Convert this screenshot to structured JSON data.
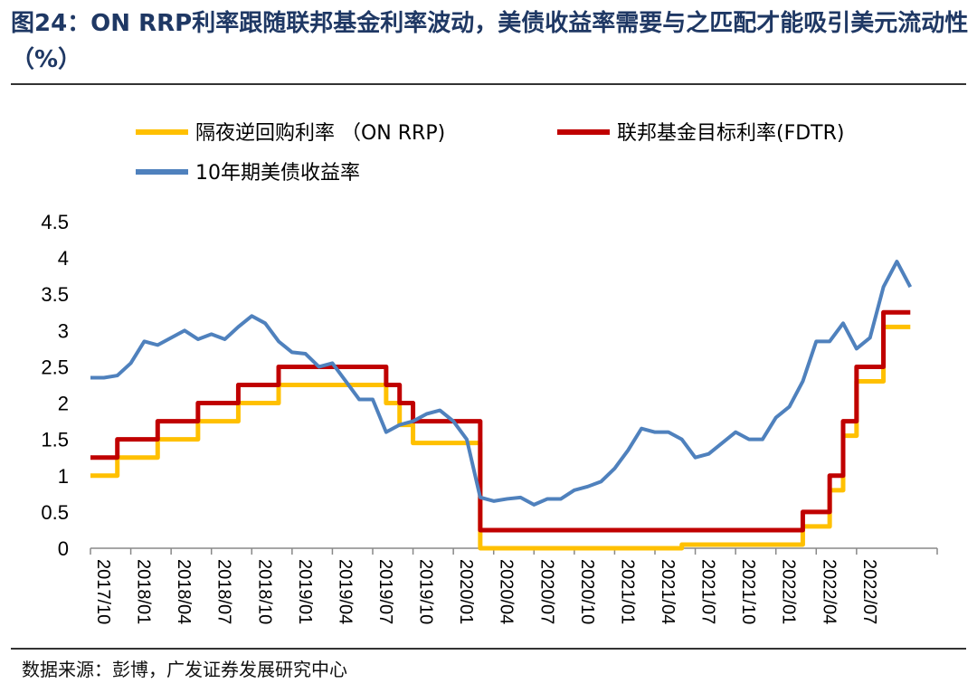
{
  "figure": {
    "title": "图24：ON RRP利率跟随联邦基金利率波动，美债收益率需要与之匹配才能吸引美元流动性（%）",
    "source": "数据来源：彭博，广发证券发展研究中心"
  },
  "chart_data": {
    "type": "line",
    "title": "ON RRP利率跟随联邦基金利率波动，美债收益率需要与之匹配才能吸引美元流动性（%）",
    "xlabel": "",
    "ylabel": "%",
    "ylim": [
      0,
      4.5
    ],
    "yticks": [
      "0",
      "0.5",
      "1",
      "1.5",
      "2",
      "2.5",
      "3",
      "3.5",
      "4",
      "4.5"
    ],
    "xlim": [
      "2017/10",
      "2023/01"
    ],
    "xticks": [
      "2017/10",
      "2018/01",
      "2018/04",
      "2018/07",
      "2018/10",
      "2019/01",
      "2019/04",
      "2019/07",
      "2019/10",
      "2020/01",
      "2020/04",
      "2020/07",
      "2020/10",
      "2021/01",
      "2021/04",
      "2021/07",
      "2021/10",
      "2022/01",
      "2022/04",
      "2022/07"
    ],
    "legend": {
      "placement": "top",
      "items": [
        "隔夜逆回购利率 （ON RRP)",
        "联邦基金目标利率(FDTR)",
        "10年期美债收益率"
      ]
    },
    "series": [
      {
        "name": "隔夜逆回购利率 （ON RRP)",
        "color": "#ffc000",
        "step": true,
        "points": [
          [
            "2017/10",
            1.0
          ],
          [
            "2017/12",
            1.25
          ],
          [
            "2018/03",
            1.5
          ],
          [
            "2018/06",
            1.75
          ],
          [
            "2018/09",
            2.0
          ],
          [
            "2018/12",
            2.25
          ],
          [
            "2019/08",
            2.0
          ],
          [
            "2019/09",
            1.7
          ],
          [
            "2019/10",
            1.45
          ],
          [
            "2020/03",
            0.0
          ],
          [
            "2021/06",
            0.05
          ],
          [
            "2022/03",
            0.3
          ],
          [
            "2022/05",
            0.8
          ],
          [
            "2022/06",
            1.55
          ],
          [
            "2022/07",
            2.3
          ],
          [
            "2022/09",
            3.05
          ],
          [
            "2022/11",
            3.05
          ]
        ]
      },
      {
        "name": "联邦基金目标利率(FDTR)",
        "color": "#c00000",
        "step": true,
        "points": [
          [
            "2017/10",
            1.25
          ],
          [
            "2017/12",
            1.5
          ],
          [
            "2018/03",
            1.75
          ],
          [
            "2018/06",
            2.0
          ],
          [
            "2018/09",
            2.25
          ],
          [
            "2018/12",
            2.5
          ],
          [
            "2019/08",
            2.25
          ],
          [
            "2019/09",
            2.0
          ],
          [
            "2019/10",
            1.75
          ],
          [
            "2020/03",
            1.25
          ],
          [
            "2020/03",
            0.25
          ],
          [
            "2022/03",
            0.5
          ],
          [
            "2022/05",
            1.0
          ],
          [
            "2022/06",
            1.75
          ],
          [
            "2022/07",
            2.5
          ],
          [
            "2022/09",
            3.25
          ],
          [
            "2022/11",
            3.25
          ]
        ]
      },
      {
        "name": "10年期美债收益率",
        "color": "#4f81bd",
        "step": false,
        "points": [
          [
            "2017/10",
            2.35
          ],
          [
            "2017/11",
            2.35
          ],
          [
            "2017/12",
            2.38
          ],
          [
            "2018/01",
            2.55
          ],
          [
            "2018/02",
            2.85
          ],
          [
            "2018/03",
            2.8
          ],
          [
            "2018/04",
            2.9
          ],
          [
            "2018/05",
            3.0
          ],
          [
            "2018/06",
            2.88
          ],
          [
            "2018/07",
            2.95
          ],
          [
            "2018/08",
            2.88
          ],
          [
            "2018/09",
            3.05
          ],
          [
            "2018/10",
            3.2
          ],
          [
            "2018/11",
            3.1
          ],
          [
            "2018/12",
            2.85
          ],
          [
            "2019/01",
            2.7
          ],
          [
            "2019/02",
            2.68
          ],
          [
            "2019/03",
            2.5
          ],
          [
            "2019/04",
            2.55
          ],
          [
            "2019/05",
            2.3
          ],
          [
            "2019/06",
            2.05
          ],
          [
            "2019/07",
            2.05
          ],
          [
            "2019/08",
            1.6
          ],
          [
            "2019/09",
            1.7
          ],
          [
            "2019/10",
            1.75
          ],
          [
            "2019/11",
            1.85
          ],
          [
            "2019/12",
            1.9
          ],
          [
            "2020/01",
            1.75
          ],
          [
            "2020/02",
            1.5
          ],
          [
            "2020/03",
            0.7
          ],
          [
            "2020/04",
            0.65
          ],
          [
            "2020/05",
            0.68
          ],
          [
            "2020/06",
            0.7
          ],
          [
            "2020/07",
            0.6
          ],
          [
            "2020/08",
            0.68
          ],
          [
            "2020/09",
            0.68
          ],
          [
            "2020/10",
            0.8
          ],
          [
            "2020/11",
            0.85
          ],
          [
            "2020/12",
            0.92
          ],
          [
            "2021/01",
            1.1
          ],
          [
            "2021/02",
            1.35
          ],
          [
            "2021/03",
            1.65
          ],
          [
            "2021/04",
            1.6
          ],
          [
            "2021/05",
            1.6
          ],
          [
            "2021/06",
            1.5
          ],
          [
            "2021/07",
            1.25
          ],
          [
            "2021/08",
            1.3
          ],
          [
            "2021/09",
            1.45
          ],
          [
            "2021/10",
            1.6
          ],
          [
            "2021/11",
            1.5
          ],
          [
            "2021/12",
            1.5
          ],
          [
            "2022/01",
            1.8
          ],
          [
            "2022/02",
            1.95
          ],
          [
            "2022/03",
            2.3
          ],
          [
            "2022/04",
            2.85
          ],
          [
            "2022/05",
            2.85
          ],
          [
            "2022/06",
            3.1
          ],
          [
            "2022/07",
            2.75
          ],
          [
            "2022/08",
            2.9
          ],
          [
            "2022/09",
            3.6
          ],
          [
            "2022/10",
            3.95
          ],
          [
            "2022/11",
            3.6
          ]
        ]
      }
    ]
  }
}
